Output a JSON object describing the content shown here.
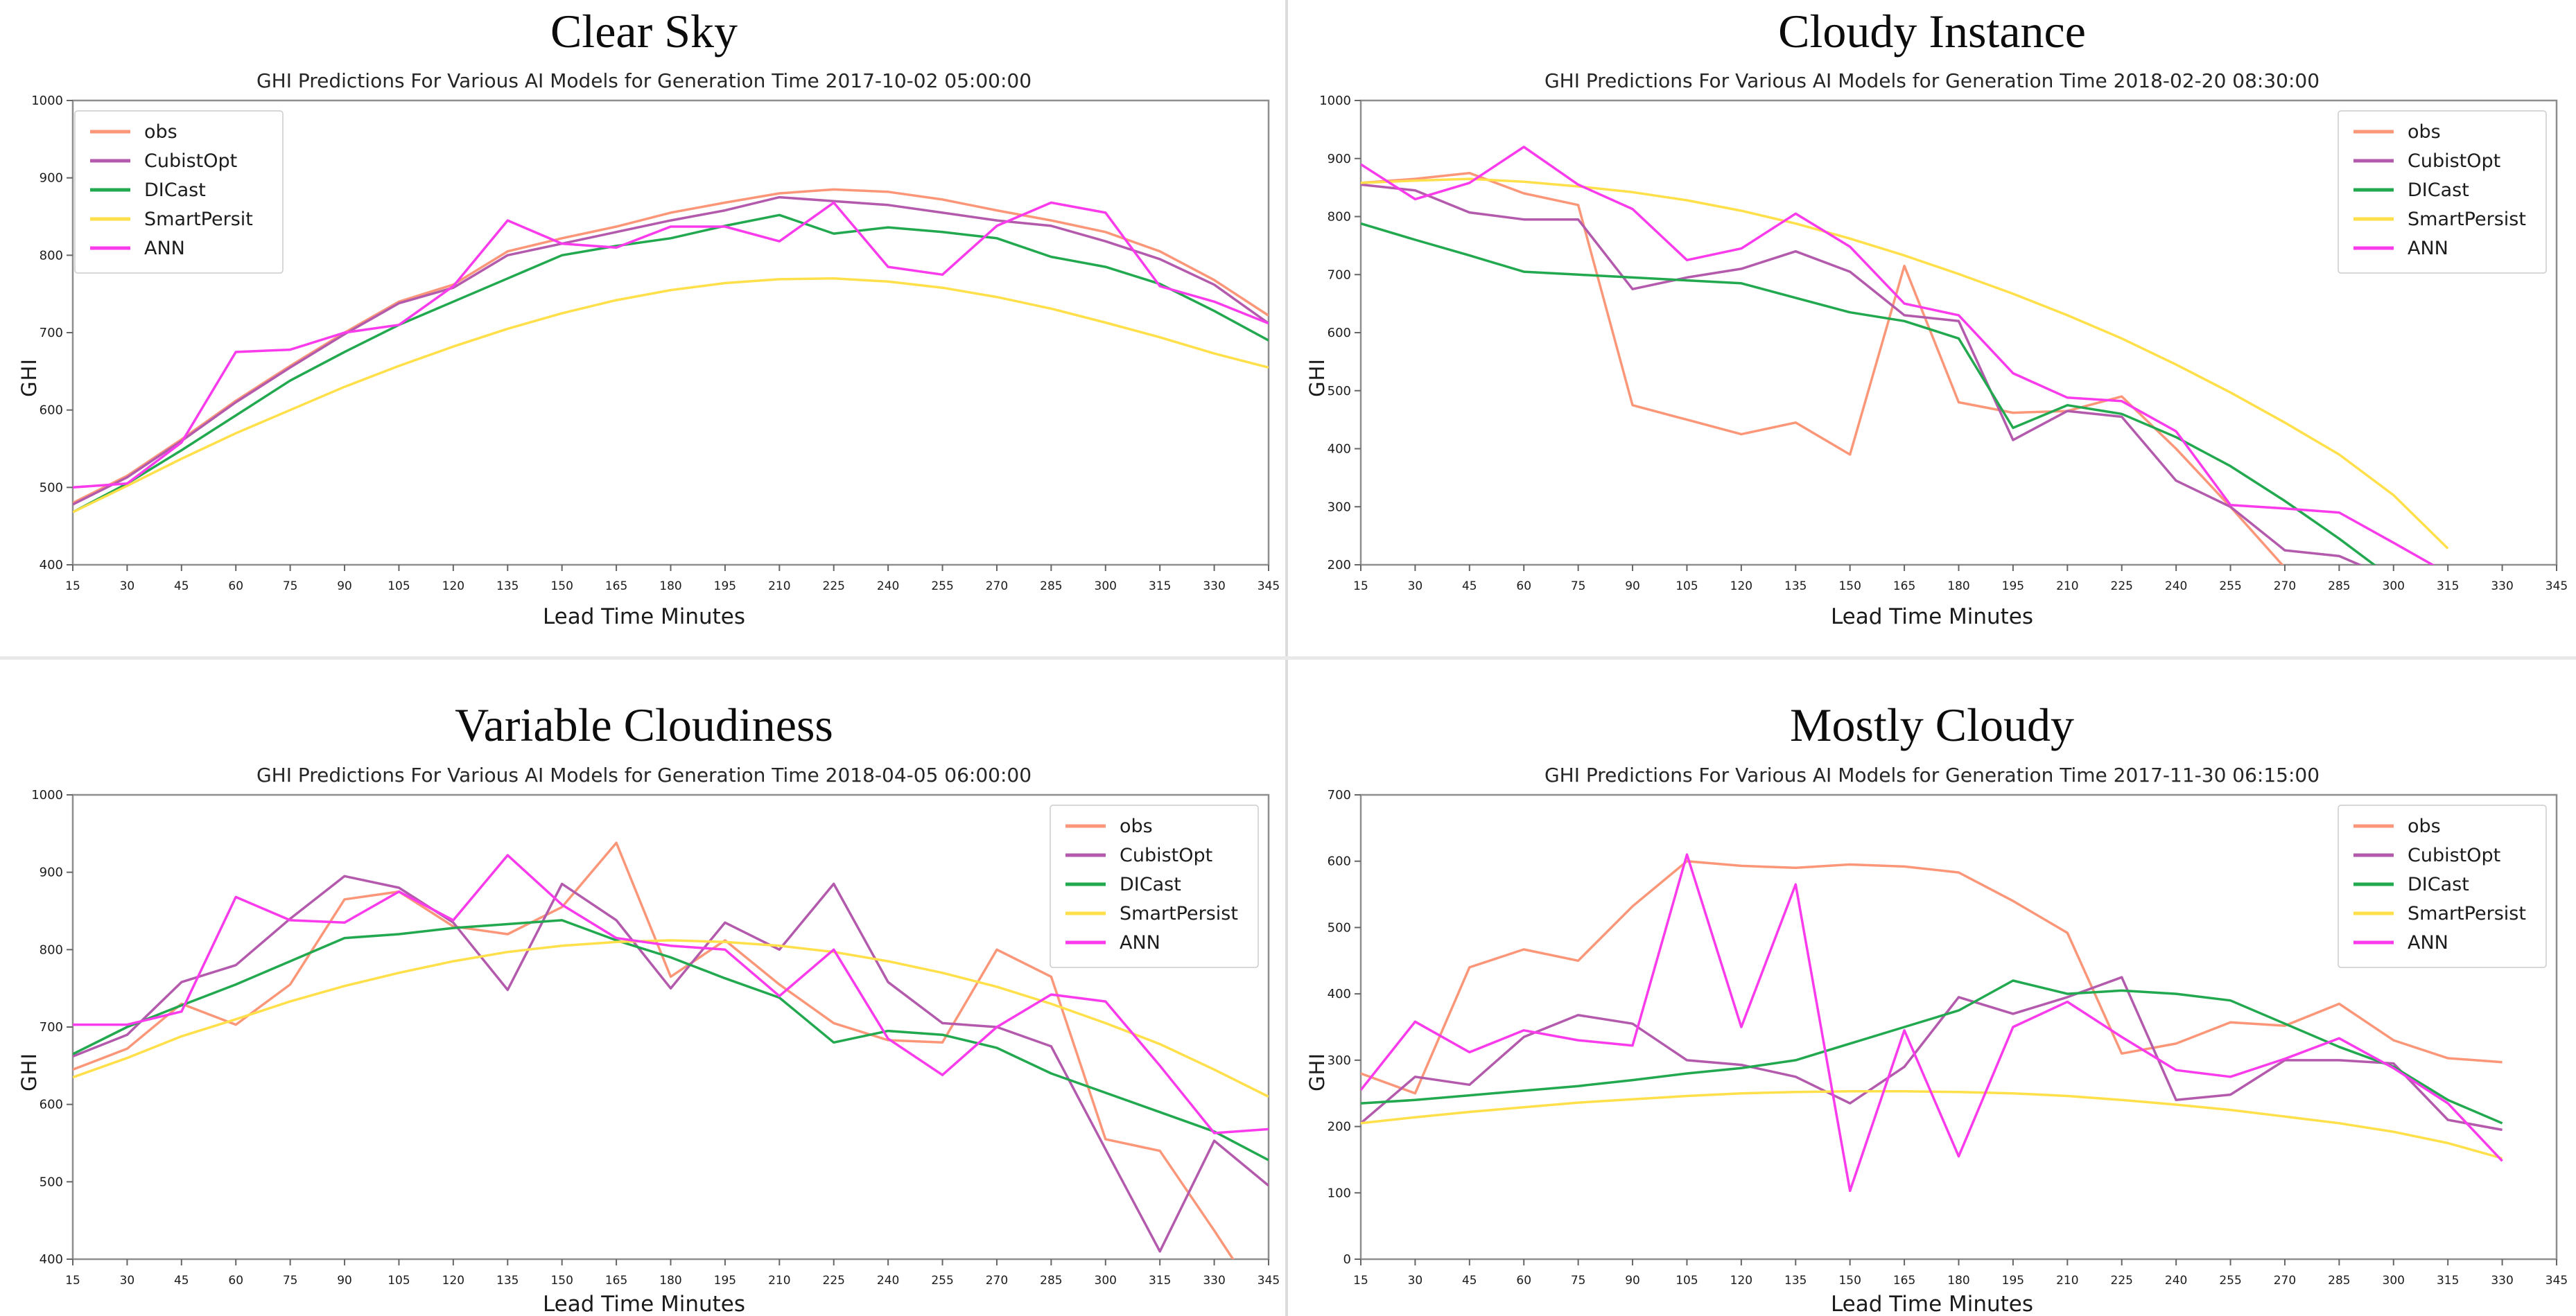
{
  "figure": {
    "background": "#ffffff",
    "separator_color": "#dcdcdc"
  },
  "chart_data": [
    {
      "type": "line",
      "panel_title": "Clear Sky",
      "title": "GHI Predictions For Various AI Models for Generation Time 2017-10-02 05:00:00",
      "xlabel": "Lead Time Minutes",
      "ylabel": "GHI",
      "legend_position": "left",
      "grid": false,
      "ylim": [
        400,
        1000
      ],
      "yticks": [
        400,
        500,
        600,
        700,
        800,
        900,
        1000
      ],
      "x": [
        15,
        30,
        45,
        60,
        75,
        90,
        105,
        120,
        135,
        150,
        165,
        180,
        195,
        210,
        225,
        240,
        255,
        270,
        285,
        300,
        315,
        330,
        345
      ],
      "series": [
        {
          "name": "obs",
          "color": "#FB9778",
          "values": [
            480,
            515,
            562,
            612,
            657,
            700,
            740,
            762,
            805,
            822,
            837,
            855,
            868,
            880,
            885,
            882,
            872,
            858,
            845,
            830,
            805,
            768,
            722
          ]
        },
        {
          "name": "CubistOpt",
          "color": "#B45AAD",
          "values": [
            478,
            513,
            560,
            610,
            655,
            698,
            738,
            758,
            800,
            815,
            830,
            845,
            858,
            875,
            870,
            865,
            855,
            845,
            838,
            818,
            795,
            762,
            712
          ]
        },
        {
          "name": "DICast",
          "color": "#22A84F",
          "values": [
            468,
            505,
            548,
            593,
            638,
            675,
            710,
            740,
            770,
            800,
            812,
            822,
            838,
            852,
            828,
            836,
            830,
            822,
            798,
            785,
            763,
            728,
            690
          ]
        },
        {
          "name": "SmartPersit",
          "color": "#FFE04A",
          "values": [
            468,
            502,
            537,
            570,
            600,
            630,
            657,
            682,
            705,
            725,
            742,
            755,
            764,
            769,
            770,
            766,
            758,
            746,
            731,
            713,
            694,
            673,
            655
          ]
        },
        {
          "name": "ANN",
          "color": "#F93BEC",
          "values": [
            500,
            505,
            558,
            675,
            678,
            700,
            710,
            760,
            845,
            815,
            810,
            837,
            837,
            818,
            868,
            785,
            775,
            838,
            868,
            855,
            760,
            740,
            712
          ]
        }
      ]
    },
    {
      "type": "line",
      "panel_title": "Cloudy Instance",
      "title": "GHI Predictions For Various AI Models for Generation Time 2018-02-20 08:30:00",
      "xlabel": "Lead Time Minutes",
      "ylabel": "GHI",
      "legend_position": "right",
      "grid": false,
      "ylim": [
        200,
        1000
      ],
      "yticks": [
        200,
        300,
        400,
        500,
        600,
        700,
        800,
        900,
        1000
      ],
      "x": [
        15,
        30,
        45,
        60,
        75,
        90,
        105,
        120,
        135,
        150,
        165,
        180,
        195,
        210,
        225,
        240,
        255,
        270,
        285,
        300,
        315,
        330,
        345
      ],
      "series": [
        {
          "name": "obs",
          "color": "#FB9778",
          "values": [
            858,
            865,
            875,
            840,
            820,
            475,
            450,
            425,
            445,
            390,
            715,
            480,
            462,
            465,
            490,
            400,
            300,
            195,
            null,
            null,
            null,
            null,
            null
          ]
        },
        {
          "name": "CubistOpt",
          "color": "#B45AAD",
          "values": [
            855,
            845,
            807,
            795,
            795,
            675,
            695,
            710,
            740,
            705,
            630,
            620,
            415,
            465,
            455,
            345,
            300,
            225,
            215,
            175,
            null,
            null,
            null
          ]
        },
        {
          "name": "DICast",
          "color": "#22A84F",
          "values": [
            788,
            760,
            733,
            705,
            700,
            695,
            690,
            685,
            660,
            635,
            620,
            590,
            436,
            475,
            460,
            420,
            370,
            310,
            245,
            175,
            null,
            null,
            null
          ]
        },
        {
          "name": "SmartPersist",
          "color": "#FFE04A",
          "values": [
            858,
            862,
            865,
            860,
            852,
            842,
            828,
            810,
            788,
            762,
            733,
            701,
            667,
            630,
            590,
            545,
            497,
            445,
            390,
            320,
            228,
            null,
            null
          ]
        },
        {
          "name": "ANN",
          "color": "#F93BEC",
          "values": [
            890,
            830,
            858,
            920,
            855,
            813,
            725,
            745,
            805,
            748,
            650,
            630,
            530,
            488,
            482,
            430,
            303,
            297,
            290,
            238,
            185,
            null,
            null
          ]
        }
      ]
    },
    {
      "type": "line",
      "panel_title": "Variable Cloudiness",
      "title": "GHI Predictions For Various AI Models for Generation Time 2018-04-05 06:00:00",
      "xlabel": "Lead Time Minutes",
      "ylabel": "GHI",
      "legend_position": "right",
      "grid": false,
      "ylim": [
        400,
        1000
      ],
      "yticks": [
        400,
        500,
        600,
        700,
        800,
        900,
        1000
      ],
      "x": [
        15,
        30,
        45,
        60,
        75,
        90,
        105,
        120,
        135,
        150,
        165,
        180,
        195,
        210,
        225,
        240,
        255,
        270,
        285,
        300,
        315,
        330,
        345
      ],
      "series": [
        {
          "name": "obs",
          "color": "#FB9778",
          "values": [
            645,
            672,
            730,
            703,
            755,
            865,
            875,
            830,
            820,
            855,
            938,
            765,
            812,
            755,
            705,
            683,
            680,
            800,
            765,
            555,
            540,
            437,
            330
          ]
        },
        {
          "name": "CubistOpt",
          "color": "#B45AAD",
          "values": [
            662,
            690,
            758,
            780,
            840,
            895,
            880,
            835,
            748,
            885,
            838,
            750,
            835,
            800,
            885,
            758,
            705,
            700,
            675,
            542,
            410,
            553,
            495
          ]
        },
        {
          "name": "DICast",
          "color": "#22A84F",
          "values": [
            665,
            700,
            728,
            755,
            785,
            815,
            820,
            828,
            833,
            838,
            812,
            790,
            763,
            738,
            680,
            695,
            690,
            673,
            640,
            615,
            590,
            565,
            528
          ]
        },
        {
          "name": "SmartPersist",
          "color": "#FFE04A",
          "values": [
            635,
            660,
            688,
            710,
            733,
            753,
            770,
            785,
            797,
            805,
            810,
            812,
            810,
            805,
            797,
            785,
            770,
            752,
            730,
            705,
            678,
            645,
            610
          ]
        },
        {
          "name": "ANN",
          "color": "#F93BEC",
          "values": [
            703,
            703,
            720,
            868,
            838,
            835,
            875,
            838,
            922,
            858,
            815,
            805,
            800,
            740,
            800,
            685,
            638,
            700,
            742,
            733,
            650,
            563,
            568
          ]
        }
      ]
    },
    {
      "type": "line",
      "panel_title": "Mostly Cloudy",
      "title": "GHI Predictions For Various AI Models for Generation Time 2017-11-30 06:15:00",
      "xlabel": "Lead Time Minutes",
      "ylabel": "GHI",
      "legend_position": "right",
      "grid": false,
      "ylim": [
        0,
        700
      ],
      "yticks": [
        0,
        100,
        200,
        300,
        400,
        500,
        600,
        700
      ],
      "x": [
        15,
        30,
        45,
        60,
        75,
        90,
        105,
        120,
        135,
        150,
        165,
        180,
        195,
        210,
        225,
        240,
        255,
        270,
        285,
        300,
        315,
        330,
        345
      ],
      "series": [
        {
          "name": "obs",
          "color": "#FB9778",
          "values": [
            280,
            250,
            440,
            467,
            450,
            532,
            600,
            593,
            590,
            595,
            592,
            583,
            540,
            492,
            310,
            325,
            357,
            352,
            385,
            330,
            303,
            297,
            null
          ]
        },
        {
          "name": "CubistOpt",
          "color": "#B45AAD",
          "values": [
            205,
            275,
            263,
            335,
            368,
            355,
            300,
            293,
            275,
            235,
            290,
            395,
            370,
            395,
            425,
            240,
            248,
            300,
            300,
            295,
            210,
            195,
            null
          ]
        },
        {
          "name": "DICast",
          "color": "#22A84F",
          "values": [
            235,
            240,
            247,
            254,
            261,
            270,
            280,
            288,
            300,
            325,
            350,
            375,
            420,
            400,
            405,
            400,
            390,
            355,
            320,
            290,
            240,
            205,
            null
          ]
        },
        {
          "name": "SmartPersist",
          "color": "#FFE04A",
          "values": [
            205,
            214,
            222,
            229,
            236,
            241,
            246,
            250,
            252,
            253,
            253,
            252,
            250,
            246,
            240,
            233,
            225,
            215,
            205,
            192,
            175,
            152,
            null
          ]
        },
        {
          "name": "ANN",
          "color": "#F93BEC",
          "values": [
            255,
            358,
            312,
            345,
            330,
            322,
            610,
            350,
            565,
            103,
            345,
            155,
            350,
            388,
            335,
            285,
            275,
            302,
            333,
            288,
            235,
            148,
            null
          ]
        }
      ]
    }
  ]
}
